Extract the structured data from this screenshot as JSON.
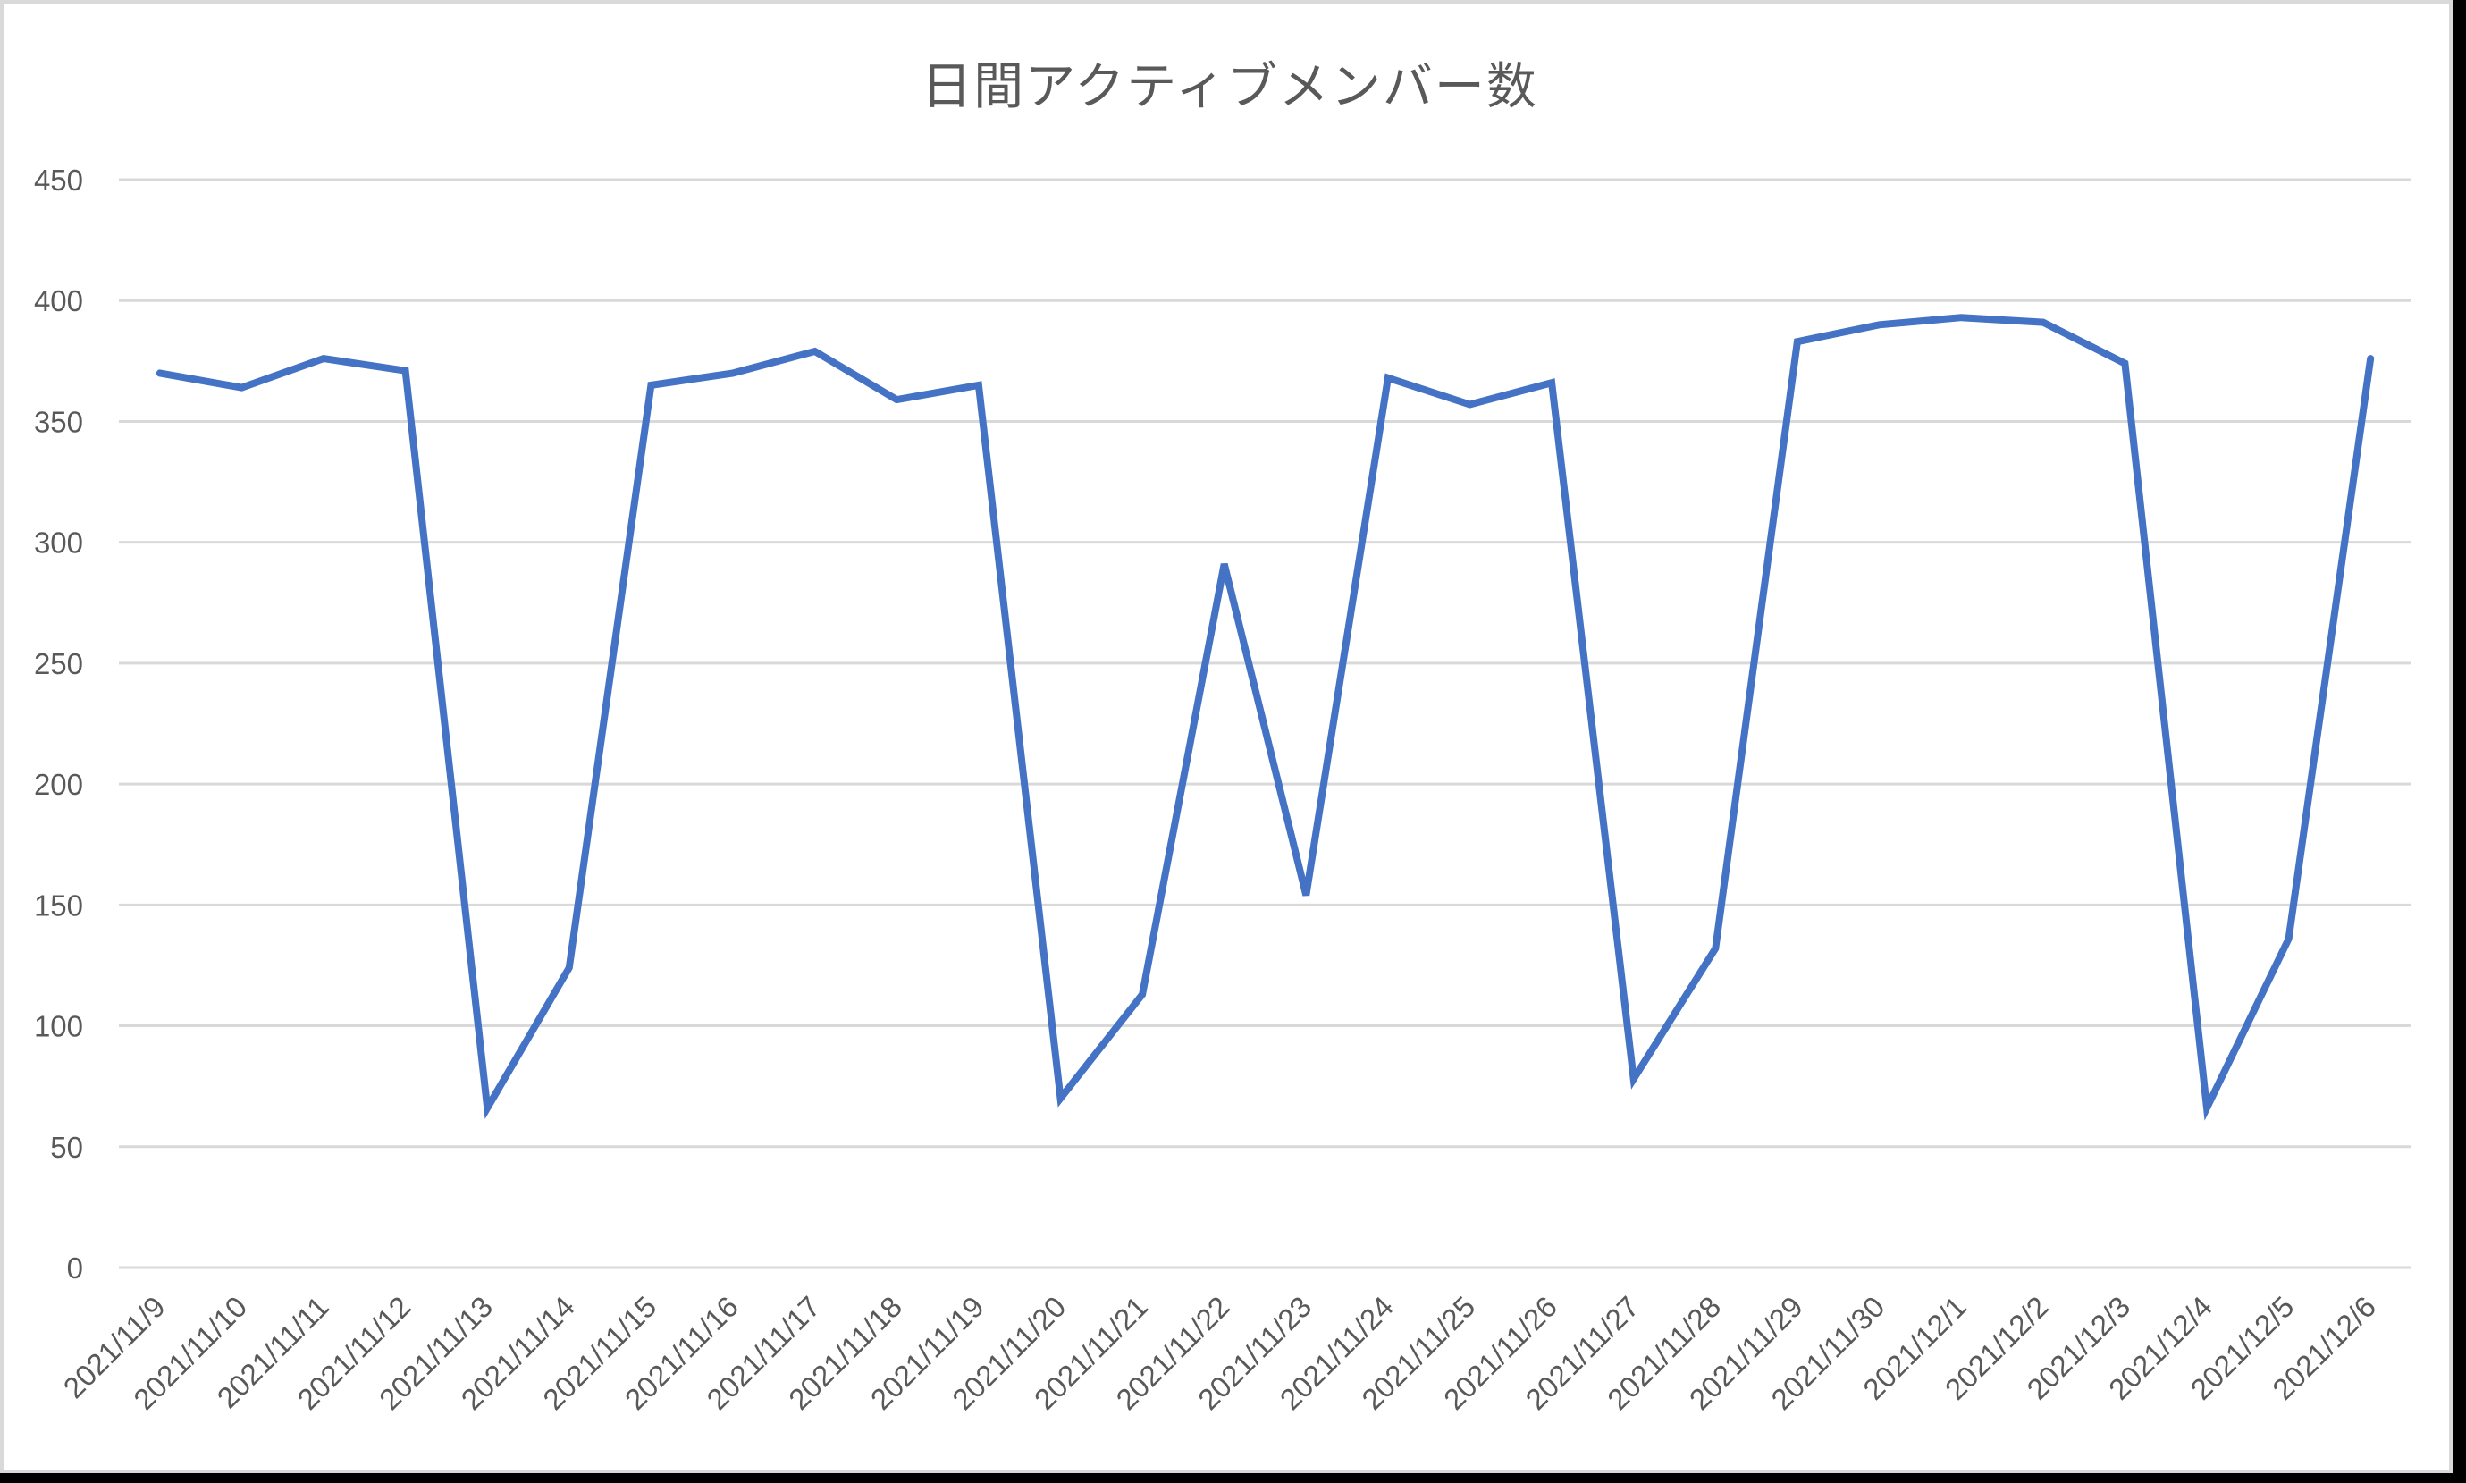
{
  "chart_data": {
    "type": "line",
    "title": "日間アクティブメンバー数",
    "xlabel": "",
    "ylabel": "",
    "ylim": [
      0,
      450
    ],
    "yticks": [
      0,
      50,
      100,
      150,
      200,
      250,
      300,
      350,
      400,
      450
    ],
    "grid": true,
    "legend": null,
    "categories": [
      "2021/11/9",
      "2021/11/10",
      "2021/11/11",
      "2021/11/12",
      "2021/11/13",
      "2021/11/14",
      "2021/11/15",
      "2021/11/16",
      "2021/11/17",
      "2021/11/18",
      "2021/11/19",
      "2021/11/20",
      "2021/11/21",
      "2021/11/22",
      "2021/11/23",
      "2021/11/24",
      "2021/11/25",
      "2021/11/26",
      "2021/11/27",
      "2021/11/28",
      "2021/11/29",
      "2021/11/30",
      "2021/12/1",
      "2021/12/2",
      "2021/12/3",
      "2021/12/4",
      "2021/12/5",
      "2021/12/6"
    ],
    "series": [
      {
        "name": "日間アクティブメンバー数",
        "color": "#4472c4",
        "values": [
          370,
          364,
          376,
          371,
          66,
          124,
          365,
          370,
          379,
          359,
          365,
          70,
          113,
          291,
          154,
          368,
          357,
          366,
          78,
          132,
          383,
          390,
          393,
          391,
          374,
          66,
          136,
          376
        ]
      }
    ]
  },
  "colors": {
    "line": "#4472c4",
    "grid": "#d9d9d9",
    "text": "#595959"
  }
}
